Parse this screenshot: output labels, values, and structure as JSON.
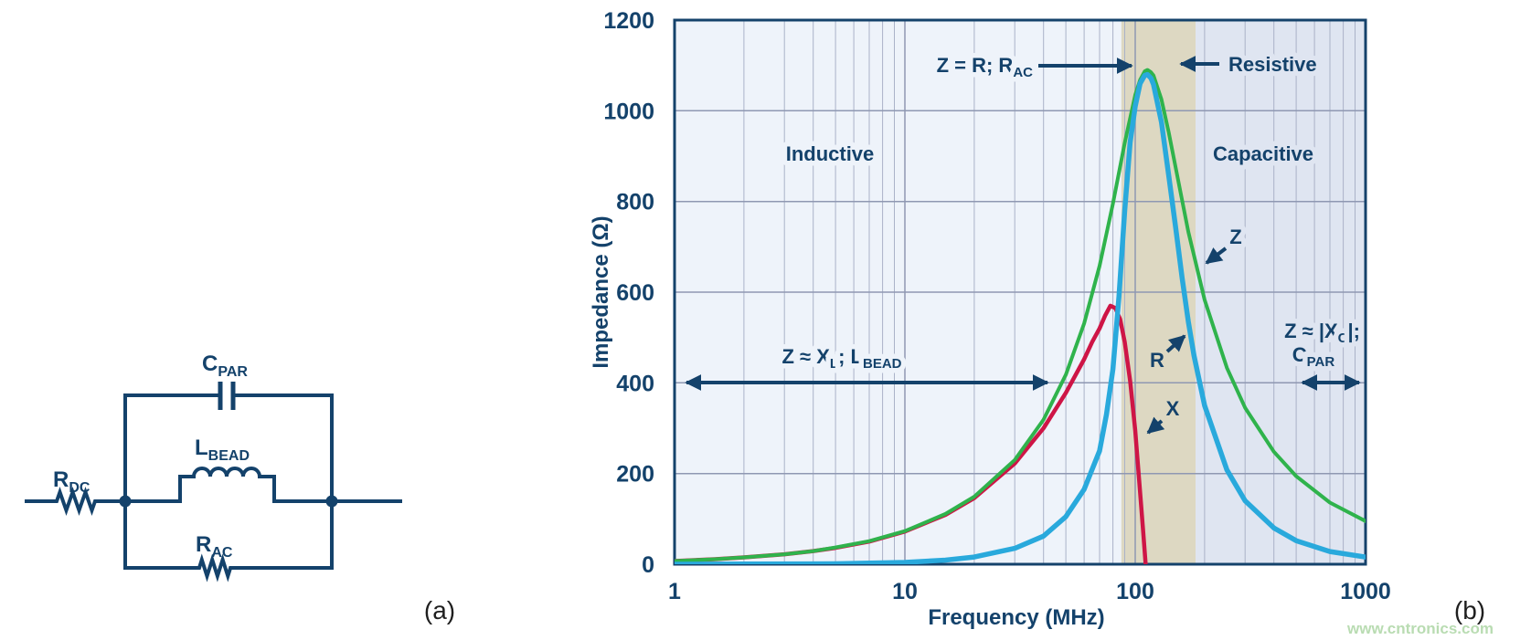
{
  "panel_a": {
    "label": "(a)",
    "components": {
      "r_dc": {
        "main": "R",
        "sub": "DC"
      },
      "c_par": {
        "main": "C",
        "sub": "PAR"
      },
      "l_bead": {
        "main": "L",
        "sub": "BEAD"
      },
      "r_ac": {
        "main": "R",
        "sub": "AC"
      }
    }
  },
  "panel_b": {
    "label": "(b)",
    "watermark": "www.cntronics.com"
  },
  "chart_data": {
    "type": "line",
    "title": "",
    "xlabel": "Frequency (MHz)",
    "ylabel": "Impedance (Ω)",
    "x_scale": "log",
    "xlim": [
      1,
      1000
    ],
    "ylim": [
      0,
      1200
    ],
    "x_ticks": [
      1,
      10,
      100,
      1000
    ],
    "y_ticks": [
      0,
      200,
      400,
      600,
      800,
      1000,
      1200
    ],
    "grid": true,
    "legend": "none",
    "colors": {
      "navy": "#14426B",
      "grid_minor": "#AAB2C8",
      "grid_major": "#8F98B2"
    },
    "regions": [
      {
        "name": "inductive",
        "from": 1,
        "to": 87,
        "color": "#EEF3FA"
      },
      {
        "name": "resistive",
        "from": 87,
        "to": 183,
        "color": "#DDD8C2"
      },
      {
        "name": "capacitive",
        "from": 183,
        "to": 1000,
        "color": "#DFE5F1"
      }
    ],
    "series": [
      {
        "name": "X",
        "color": "#CE1546",
        "width": 4.5,
        "x": [
          1,
          1.5,
          2,
          3,
          4,
          5,
          7,
          10,
          15,
          20,
          30,
          40,
          50,
          60,
          65,
          70,
          74,
          78,
          82,
          86,
          90,
          95,
          100,
          104,
          108,
          111
        ],
        "y": [
          7,
          11,
          15,
          22,
          29,
          36,
          50,
          72,
          109,
          146,
          222,
          300,
          378,
          452,
          490,
          520,
          548,
          570,
          565,
          540,
          490,
          405,
          295,
          185,
          80,
          0
        ]
      },
      {
        "name": "Z",
        "color": "#2FB34C",
        "width": 4,
        "x": [
          1,
          1.5,
          2,
          3,
          4,
          5,
          7,
          10,
          15,
          20,
          30,
          40,
          50,
          60,
          70,
          80,
          90,
          100,
          105,
          110,
          113,
          117,
          120,
          130,
          140,
          150,
          170,
          200,
          250,
          300,
          400,
          500,
          700,
          1000
        ],
        "y": [
          7,
          11,
          15,
          22,
          29,
          37,
          51,
          73,
          111,
          149,
          230,
          319,
          418,
          531,
          658,
          795,
          929,
          1035,
          1068,
          1087,
          1090,
          1085,
          1078,
          1025,
          951,
          873,
          733,
          583,
          433,
          345,
          248,
          194,
          136,
          95
        ]
      },
      {
        "name": "R",
        "color": "#29A9DC",
        "width": 5.5,
        "x": [
          1,
          5,
          10,
          15,
          20,
          30,
          40,
          50,
          60,
          70,
          75,
          80,
          85,
          90,
          95,
          100,
          105,
          110,
          113,
          117,
          120,
          130,
          140,
          150,
          160,
          170,
          180,
          200,
          250,
          300,
          400,
          500,
          700,
          1000
        ],
        "y": [
          0,
          1,
          4,
          9,
          16,
          35,
          62,
          105,
          165,
          250,
          330,
          430,
          590,
          780,
          930,
          1010,
          1060,
          1078,
          1080,
          1072,
          1058,
          975,
          855,
          740,
          630,
          535,
          460,
          350,
          208,
          140,
          80,
          52,
          28,
          16
        ]
      }
    ],
    "annotations": {
      "peak_formula": {
        "main": "Z = R; R",
        "sub": "AC"
      },
      "region_inductive": "Inductive",
      "region_resistive": "Resistive",
      "region_capacitive": "Capacitive",
      "inductive_formula": {
        "p1": "Z ≈ X",
        "s1": "L",
        "p2": "; L",
        "s2": "BEAD"
      },
      "capacitive_formula": {
        "p1": "Z ≈ |X",
        "s1": "C",
        "p2": "|;",
        "c_main": "C",
        "c_sub": "PAR"
      },
      "z_curve_label": "Z",
      "r_curve_label": "R",
      "x_curve_label": "X"
    }
  }
}
